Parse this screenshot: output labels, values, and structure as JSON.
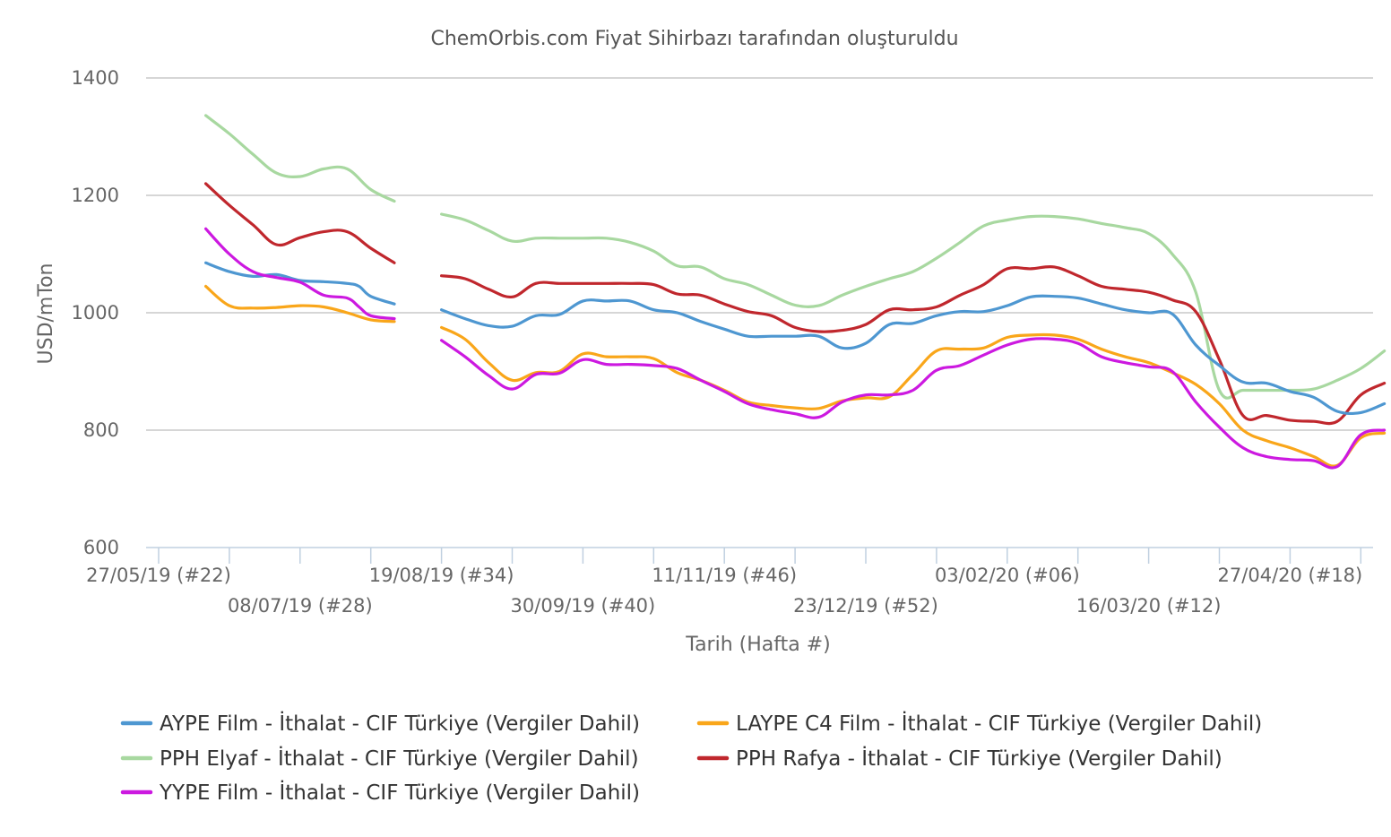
{
  "chart_data": {
    "type": "line",
    "title": "ChemOrbis.com Fiyat Sihirbazı tarafından oluşturuldu",
    "xlabel": "Tarih (Hafta #)",
    "ylabel": "USD/mTon",
    "ylim": [
      600,
      1400
    ],
    "yticks": [
      600,
      800,
      1000,
      1200,
      1400
    ],
    "grid": true,
    "legend_position": "bottom",
    "x_tick_labels": [
      {
        "week": 0,
        "label": "27/05/19 (#22)",
        "row": 1
      },
      {
        "week": 6,
        "label": "08/07/19 (#28)",
        "row": 2
      },
      {
        "week": 12,
        "label": "19/08/19 (#34)",
        "row": 1
      },
      {
        "week": 18,
        "label": "30/09/19 (#40)",
        "row": 2
      },
      {
        "week": 24,
        "label": "11/11/19 (#46)",
        "row": 1
      },
      {
        "week": 30,
        "label": "23/12/19 (#52)",
        "row": 2
      },
      {
        "week": 36,
        "label": "03/02/20 (#06)",
        "row": 1
      },
      {
        "week": 42,
        "label": "16/03/20 (#12)",
        "row": 2
      },
      {
        "week": 48,
        "label": "27/04/20 (#18)",
        "row": 1
      }
    ],
    "series": [
      {
        "name": "AYPE Film - İthalat - CIF Türkiye (Vergiler Dahil)",
        "color": "#4e97d1",
        "segments": [
          [
            [
              2.0,
              1085
            ],
            [
              3.0,
              1070
            ],
            [
              4.0,
              1062
            ],
            [
              5.0,
              1065
            ],
            [
              6.0,
              1055
            ],
            [
              7.0,
              1053
            ],
            [
              8.0,
              1050
            ],
            [
              8.5,
              1045
            ],
            [
              9.0,
              1028
            ],
            [
              10.0,
              1015
            ]
          ],
          [
            [
              12.0,
              1005
            ],
            [
              13.0,
              990
            ],
            [
              14.0,
              978
            ],
            [
              15.0,
              977
            ],
            [
              16.0,
              995
            ],
            [
              17.0,
              997
            ],
            [
              18.0,
              1020
            ],
            [
              19.0,
              1020
            ],
            [
              20.0,
              1020
            ],
            [
              21.0,
              1005
            ],
            [
              22.0,
              1000
            ],
            [
              23.0,
              985
            ],
            [
              24.0,
              972
            ],
            [
              25.0,
              960
            ],
            [
              26.0,
              960
            ],
            [
              27.0,
              960
            ],
            [
              28.0,
              960
            ],
            [
              29.0,
              940
            ],
            [
              30.0,
              948
            ],
            [
              31.0,
              980
            ],
            [
              32.0,
              982
            ],
            [
              33.0,
              995
            ],
            [
              34.0,
              1002
            ],
            [
              35.0,
              1002
            ],
            [
              36.0,
              1012
            ],
            [
              37.0,
              1027
            ],
            [
              38.0,
              1028
            ],
            [
              39.0,
              1025
            ],
            [
              40.0,
              1015
            ],
            [
              41.0,
              1005
            ],
            [
              42.0,
              1000
            ],
            [
              43.0,
              998
            ],
            [
              44.0,
              945
            ],
            [
              45.0,
              910
            ],
            [
              46.0,
              882
            ],
            [
              47.0,
              880
            ],
            [
              48.0,
              866
            ],
            [
              49.0,
              856
            ],
            [
              50.0,
              832
            ],
            [
              51.0,
              830
            ],
            [
              52.0,
              845
            ]
          ]
        ]
      },
      {
        "name": "LAYPE C4 Film - İthalat - CIF Türkiye (Vergiler Dahil)",
        "color": "#f9a61a",
        "segments": [
          [
            [
              2.0,
              1045
            ],
            [
              3.0,
              1012
            ],
            [
              4.0,
              1008
            ],
            [
              5.0,
              1009
            ],
            [
              6.0,
              1012
            ],
            [
              7.0,
              1010
            ],
            [
              8.0,
              1000
            ],
            [
              9.0,
              988
            ],
            [
              10.0,
              985
            ]
          ],
          [
            [
              12.0,
              975
            ],
            [
              13.0,
              955
            ],
            [
              14.0,
              915
            ],
            [
              15.0,
              885
            ],
            [
              16.0,
              898
            ],
            [
              17.0,
              900
            ],
            [
              18.0,
              930
            ],
            [
              19.0,
              925
            ],
            [
              20.0,
              925
            ],
            [
              21.0,
              922
            ],
            [
              22.0,
              898
            ],
            [
              23.0,
              885
            ],
            [
              24.0,
              868
            ],
            [
              25.0,
              848
            ],
            [
              26.0,
              842
            ],
            [
              27.0,
              838
            ],
            [
              28.0,
              837
            ],
            [
              29.0,
              850
            ],
            [
              30.0,
              855
            ],
            [
              31.0,
              857
            ],
            [
              32.0,
              895
            ],
            [
              33.0,
              935
            ],
            [
              34.0,
              938
            ],
            [
              35.0,
              940
            ],
            [
              36.0,
              958
            ],
            [
              37.0,
              962
            ],
            [
              38.0,
              962
            ],
            [
              39.0,
              955
            ],
            [
              40.0,
              938
            ],
            [
              41.0,
              925
            ],
            [
              42.0,
              915
            ],
            [
              43.0,
              898
            ],
            [
              44.0,
              878
            ],
            [
              45.0,
              845
            ],
            [
              46.0,
              800
            ],
            [
              47.0,
              782
            ],
            [
              48.0,
              770
            ],
            [
              49.0,
              755
            ],
            [
              50.0,
              740
            ],
            [
              51.0,
              787
            ],
            [
              52.0,
              795
            ]
          ]
        ]
      },
      {
        "name": "PPH Elyaf - İthalat - CIF Türkiye (Vergiler Dahil)",
        "color": "#a8d8a0",
        "segments": [
          [
            [
              2.0,
              1336
            ],
            [
              3.0,
              1305
            ],
            [
              4.0,
              1270
            ],
            [
              5.0,
              1238
            ],
            [
              6.0,
              1232
            ],
            [
              7.0,
              1245
            ],
            [
              8.0,
              1245
            ],
            [
              9.0,
              1210
            ],
            [
              10.0,
              1190
            ]
          ],
          [
            [
              12.0,
              1168
            ],
            [
              13.0,
              1158
            ],
            [
              14.0,
              1140
            ],
            [
              15.0,
              1122
            ],
            [
              16.0,
              1127
            ],
            [
              17.0,
              1127
            ],
            [
              18.0,
              1127
            ],
            [
              19.0,
              1127
            ],
            [
              20.0,
              1120
            ],
            [
              21.0,
              1105
            ],
            [
              22.0,
              1080
            ],
            [
              23.0,
              1078
            ],
            [
              24.0,
              1058
            ],
            [
              25.0,
              1048
            ],
            [
              26.0,
              1030
            ],
            [
              27.0,
              1013
            ],
            [
              28.0,
              1012
            ],
            [
              29.0,
              1030
            ],
            [
              30.0,
              1045
            ],
            [
              31.0,
              1058
            ],
            [
              32.0,
              1070
            ],
            [
              33.0,
              1093
            ],
            [
              34.0,
              1120
            ],
            [
              35.0,
              1148
            ],
            [
              36.0,
              1158
            ],
            [
              37.0,
              1164
            ],
            [
              38.0,
              1164
            ],
            [
              39.0,
              1160
            ],
            [
              40.0,
              1152
            ],
            [
              41.0,
              1145
            ],
            [
              42.0,
              1135
            ],
            [
              43.0,
              1100
            ],
            [
              44.0,
              1035
            ],
            [
              45.0,
              868
            ],
            [
              46.0,
              868
            ],
            [
              47.0,
              868
            ],
            [
              48.0,
              868
            ],
            [
              49.0,
              870
            ],
            [
              50.0,
              885
            ],
            [
              51.0,
              905
            ],
            [
              52.0,
              935
            ]
          ]
        ]
      },
      {
        "name": "PPH Rafya - İthalat - CIF Türkiye (Vergiler Dahil)",
        "color": "#c0272d",
        "segments": [
          [
            [
              2.0,
              1220
            ],
            [
              3.0,
              1183
            ],
            [
              4.0,
              1150
            ],
            [
              5.0,
              1116
            ],
            [
              6.0,
              1128
            ],
            [
              7.0,
              1138
            ],
            [
              8.0,
              1138
            ],
            [
              9.0,
              1110
            ],
            [
              10.0,
              1085
            ]
          ],
          [
            [
              12.0,
              1063
            ],
            [
              13.0,
              1058
            ],
            [
              14.0,
              1040
            ],
            [
              15.0,
              1027
            ],
            [
              16.0,
              1050
            ],
            [
              17.0,
              1050
            ],
            [
              18.0,
              1050
            ],
            [
              19.0,
              1050
            ],
            [
              20.0,
              1050
            ],
            [
              21.0,
              1048
            ],
            [
              22.0,
              1032
            ],
            [
              23.0,
              1030
            ],
            [
              24.0,
              1015
            ],
            [
              25.0,
              1002
            ],
            [
              26.0,
              995
            ],
            [
              27.0,
              975
            ],
            [
              28.0,
              968
            ],
            [
              29.0,
              970
            ],
            [
              30.0,
              980
            ],
            [
              31.0,
              1005
            ],
            [
              32.0,
              1005
            ],
            [
              33.0,
              1010
            ],
            [
              34.0,
              1030
            ],
            [
              35.0,
              1048
            ],
            [
              36.0,
              1075
            ],
            [
              37.0,
              1075
            ],
            [
              38.0,
              1078
            ],
            [
              39.0,
              1063
            ],
            [
              40.0,
              1045
            ],
            [
              41.0,
              1040
            ],
            [
              42.0,
              1035
            ],
            [
              43.0,
              1022
            ],
            [
              44.0,
              1002
            ],
            [
              45.0,
              920
            ],
            [
              46.0,
              825
            ],
            [
              47.0,
              825
            ],
            [
              48.0,
              817
            ],
            [
              49.0,
              815
            ],
            [
              50.0,
              815
            ],
            [
              51.0,
              860
            ],
            [
              52.0,
              880
            ]
          ]
        ]
      },
      {
        "name": "YYPE Film - İthalat - CIF Türkiye (Vergiler Dahil)",
        "color": "#cc19e0",
        "segments": [
          [
            [
              2.0,
              1143
            ],
            [
              3.0,
              1100
            ],
            [
              4.0,
              1070
            ],
            [
              5.0,
              1060
            ],
            [
              6.0,
              1052
            ],
            [
              7.0,
              1030
            ],
            [
              8.0,
              1025
            ],
            [
              8.5,
              1010
            ],
            [
              9.0,
              995
            ],
            [
              10.0,
              990
            ]
          ],
          [
            [
              12.0,
              953
            ],
            [
              13.0,
              925
            ],
            [
              14.0,
              893
            ],
            [
              15.0,
              870
            ],
            [
              16.0,
              895
            ],
            [
              17.0,
              897
            ],
            [
              18.0,
              920
            ],
            [
              19.0,
              912
            ],
            [
              20.0,
              912
            ],
            [
              21.0,
              910
            ],
            [
              22.0,
              905
            ],
            [
              23.0,
              885
            ],
            [
              24.0,
              866
            ],
            [
              25.0,
              845
            ],
            [
              26.0,
              835
            ],
            [
              27.0,
              828
            ],
            [
              28.0,
              822
            ],
            [
              29.0,
              848
            ],
            [
              30.0,
              860
            ],
            [
              31.0,
              860
            ],
            [
              32.0,
              868
            ],
            [
              33.0,
              902
            ],
            [
              34.0,
              910
            ],
            [
              35.0,
              928
            ],
            [
              36.0,
              945
            ],
            [
              37.0,
              955
            ],
            [
              38.0,
              955
            ],
            [
              39.0,
              948
            ],
            [
              40.0,
              925
            ],
            [
              41.0,
              915
            ],
            [
              42.0,
              908
            ],
            [
              43.0,
              900
            ],
            [
              44.0,
              848
            ],
            [
              45.0,
              805
            ],
            [
              46.0,
              770
            ],
            [
              47.0,
              755
            ],
            [
              48.0,
              750
            ],
            [
              49.0,
              748
            ],
            [
              50.0,
              738
            ],
            [
              51.0,
              792
            ],
            [
              52.0,
              800
            ]
          ]
        ]
      }
    ]
  }
}
